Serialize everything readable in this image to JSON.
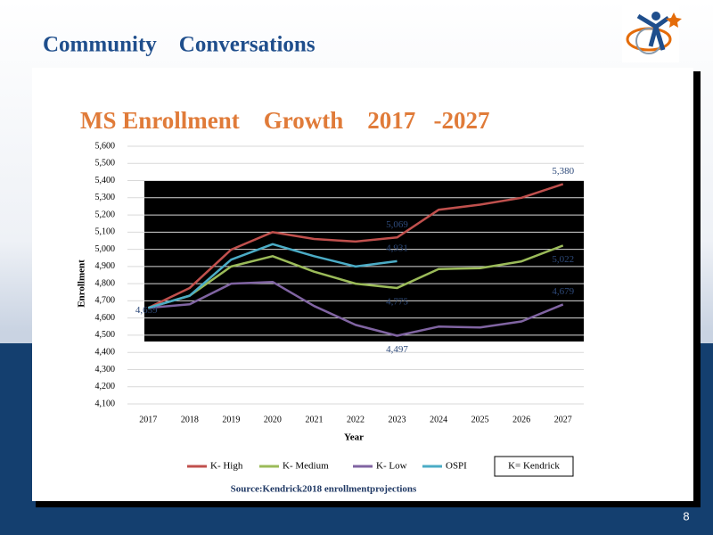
{
  "slide_title": "Community    Conversations",
  "page_number": "8",
  "chart_data": {
    "type": "line",
    "title": "MS Enrollment    Growth    2017   -2027",
    "x_label": "Year",
    "y_label": "Enrollment",
    "annotations": [
      "K= Kendrick",
      "Source:Kendrick2018 enrollmentprojections"
    ],
    "categories": [
      "2017",
      "2018",
      "2019",
      "2020",
      "2021",
      "2022",
      "2023",
      "2024",
      "2025",
      "2026",
      "2027"
    ],
    "ylim": [
      4100,
      5600
    ],
    "yticks": [
      {
        "value": 4100,
        "label": "4,100"
      },
      {
        "value": 4200,
        "label": "4,200"
      },
      {
        "value": 4300,
        "label": "4,300"
      },
      {
        "value": 4400,
        "label": "4,400"
      },
      {
        "value": 4500,
        "label": "4,500"
      },
      {
        "value": 4600,
        "label": "4,600"
      },
      {
        "value": 4700,
        "label": "4,700"
      },
      {
        "value": 4800,
        "label": "4,800"
      },
      {
        "value": 4900,
        "label": "4,900"
      },
      {
        "value": 5000,
        "label": "5,000"
      },
      {
        "value": 5100,
        "label": "5,100"
      },
      {
        "value": 5200,
        "label": "5,200"
      },
      {
        "value": 5300,
        "label": "5,300"
      },
      {
        "value": 5400,
        "label": "5,400"
      },
      {
        "value": 5500,
        "label": "5,500"
      },
      {
        "value": 5600,
        "label": "5,600"
      }
    ],
    "grid": true,
    "legend": "bottom",
    "series": [
      {
        "name": "K- High",
        "color": "#c0504d",
        "values": [
          4659,
          4775,
          4998,
          5100,
          5060,
          5045,
          5069,
          5230,
          5260,
          5300,
          5380
        ],
        "value_labels": [
          null,
          null,
          null,
          null,
          null,
          null,
          "5,069",
          null,
          null,
          null,
          "5,380"
        ]
      },
      {
        "name": "K- Medium",
        "color": "#9bbb59",
        "values": [
          4659,
          4730,
          4900,
          4960,
          4870,
          4800,
          4775,
          4885,
          4890,
          4930,
          5022
        ],
        "value_labels": [
          null,
          null,
          null,
          null,
          null,
          null,
          "4,775",
          null,
          null,
          null,
          "5,022"
        ]
      },
      {
        "name": "K- Low",
        "color": "#8064a2",
        "values": [
          4659,
          4680,
          4800,
          4810,
          4670,
          4560,
          4497,
          4550,
          4545,
          4580,
          4679
        ],
        "value_labels": [
          "4,659",
          null,
          null,
          null,
          null,
          null,
          "4,497",
          null,
          null,
          null,
          "4,679"
        ]
      },
      {
        "name": "OSPI",
        "color": "#4bacc6",
        "values": [
          4659,
          4730,
          4940,
          5030,
          4960,
          4900,
          4931,
          null,
          null,
          null,
          null
        ],
        "value_labels": [
          null,
          null,
          null,
          null,
          null,
          null,
          "4,931",
          null,
          null,
          null,
          null
        ]
      }
    ]
  }
}
